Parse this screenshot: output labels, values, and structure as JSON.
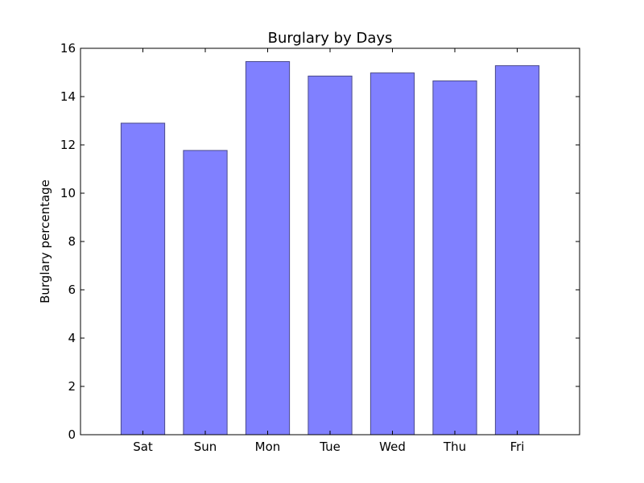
{
  "chart_data": {
    "type": "bar",
    "title": "Burglary by Days",
    "xlabel": "",
    "ylabel": "Burglary percentage",
    "categories": [
      "Sat",
      "Sun",
      "Mon",
      "Tue",
      "Wed",
      "Thu",
      "Fri"
    ],
    "values": [
      12.9,
      11.77,
      15.45,
      14.85,
      14.98,
      14.65,
      15.28
    ],
    "ylim": [
      0,
      16
    ],
    "yticks": [
      "0",
      "2",
      "4",
      "6",
      "8",
      "10",
      "12",
      "14",
      "16"
    ],
    "grid": false,
    "legend": "none",
    "colors": {
      "bar_fill": "#8080ff",
      "bar_edge": "#4a4a8a",
      "axis": "#000000"
    }
  }
}
